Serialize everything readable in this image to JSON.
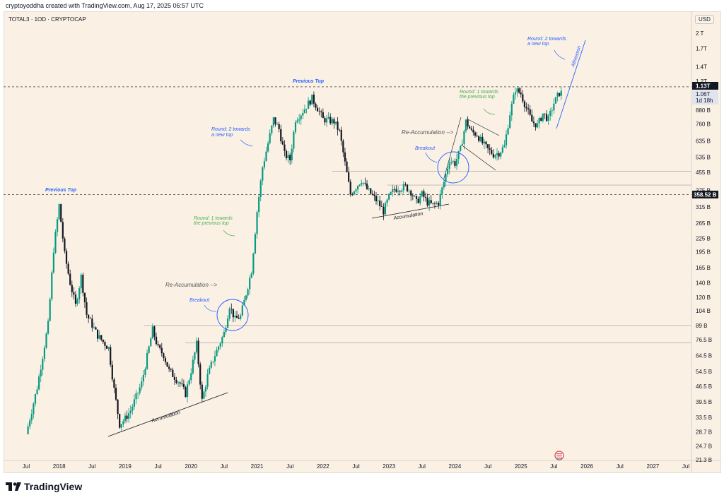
{
  "credit": "cryptoyoddha created with TradingView.com, Aug 17, 2025 06:57 UTC",
  "symbol": "TOTAL3 · 1OD · CRYPTOCAP",
  "currency": "USD",
  "brand": "TradingView",
  "icon": "tradingview-logo-icon",
  "colors": {
    "background": "#faf0e4",
    "up": "#089981",
    "down": "#131722",
    "annotation_blue": "#2962ff",
    "annotation_green": "#4caf50"
  },
  "chart_data": {
    "type": "candlestick",
    "title": "TOTAL3 · 1OD · CRYPTOCAP",
    "y_scale": "log",
    "y_unit": "USD",
    "y_ticks": [
      "2 T",
      "1.7T",
      "1.4T",
      "1.2T",
      "880 B",
      "760 B",
      "635 B",
      "535 B",
      "455 B",
      "375 B",
      "315 B",
      "265 B",
      "225 B",
      "195 B",
      "165 B",
      "140 B",
      "120 B",
      "104 B",
      "89 B",
      "76.5 B",
      "64.5 B",
      "54.5 B",
      "46.5 B",
      "39.5 B",
      "33.5 B",
      "28.7 B",
      "24.7 B",
      "21.3 B"
    ],
    "x_ticks": [
      "Jul",
      "2018",
      "Jul",
      "2019",
      "Jul",
      "2020",
      "Jul",
      "2021",
      "Jul",
      "2022",
      "Jul",
      "2023",
      "Jul",
      "2024",
      "Jul",
      "2025",
      "Jul",
      "2026",
      "Jul",
      "2027",
      "Jul"
    ],
    "price_labels": [
      "1.13T",
      "1.06T",
      "1d 18h",
      "358.52 B"
    ],
    "series": [
      {
        "date": "2017-07",
        "close": 28
      },
      {
        "date": "2017-09",
        "close": 46
      },
      {
        "date": "2017-11",
        "close": 90
      },
      {
        "date": "2017-12",
        "close": 200
      },
      {
        "date": "2018-01",
        "close": 320
      },
      {
        "date": "2018-02",
        "close": 190
      },
      {
        "date": "2018-03",
        "close": 140
      },
      {
        "date": "2018-04",
        "close": 110
      },
      {
        "date": "2018-05",
        "close": 150
      },
      {
        "date": "2018-06",
        "close": 100
      },
      {
        "date": "2018-08",
        "close": 80
      },
      {
        "date": "2018-10",
        "close": 70
      },
      {
        "date": "2018-11",
        "close": 45
      },
      {
        "date": "2018-12",
        "close": 31
      },
      {
        "date": "2019-01",
        "close": 33
      },
      {
        "date": "2019-02",
        "close": 36
      },
      {
        "date": "2019-04",
        "close": 48
      },
      {
        "date": "2019-06",
        "close": 85
      },
      {
        "date": "2019-07",
        "close": 70
      },
      {
        "date": "2019-08",
        "close": 65
      },
      {
        "date": "2019-09",
        "close": 55
      },
      {
        "date": "2019-11",
        "close": 48
      },
      {
        "date": "2019-12",
        "close": 43
      },
      {
        "date": "2020-01",
        "close": 55
      },
      {
        "date": "2020-02",
        "close": 73
      },
      {
        "date": "2020-03",
        "close": 40
      },
      {
        "date": "2020-04",
        "close": 52
      },
      {
        "date": "2020-05",
        "close": 62
      },
      {
        "date": "2020-07",
        "close": 82
      },
      {
        "date": "2020-08",
        "close": 110
      },
      {
        "date": "2020-09",
        "close": 95
      },
      {
        "date": "2020-10",
        "close": 98
      },
      {
        "date": "2020-11",
        "close": 125
      },
      {
        "date": "2020-12",
        "close": 160
      },
      {
        "date": "2021-01",
        "close": 300
      },
      {
        "date": "2021-02",
        "close": 480
      },
      {
        "date": "2021-04",
        "close": 800
      },
      {
        "date": "2021-05",
        "close": 720
      },
      {
        "date": "2021-06",
        "close": 550
      },
      {
        "date": "2021-07",
        "close": 520
      },
      {
        "date": "2021-08",
        "close": 800
      },
      {
        "date": "2021-09",
        "close": 850
      },
      {
        "date": "2021-11",
        "close": 1000
      },
      {
        "date": "2021-12",
        "close": 900
      },
      {
        "date": "2022-01",
        "close": 800
      },
      {
        "date": "2022-03",
        "close": 780
      },
      {
        "date": "2022-04",
        "close": 700
      },
      {
        "date": "2022-05",
        "close": 500
      },
      {
        "date": "2022-06",
        "close": 360
      },
      {
        "date": "2022-08",
        "close": 420
      },
      {
        "date": "2022-09",
        "close": 380
      },
      {
        "date": "2022-11",
        "close": 330
      },
      {
        "date": "2022-12",
        "close": 300
      },
      {
        "date": "2023-01",
        "close": 350
      },
      {
        "date": "2023-02",
        "close": 380
      },
      {
        "date": "2023-04",
        "close": 390
      },
      {
        "date": "2023-05",
        "close": 370
      },
      {
        "date": "2023-06",
        "close": 330
      },
      {
        "date": "2023-07",
        "close": 360
      },
      {
        "date": "2023-08",
        "close": 330
      },
      {
        "date": "2023-09",
        "close": 320
      },
      {
        "date": "2023-10",
        "close": 330
      },
      {
        "date": "2023-11",
        "close": 410
      },
      {
        "date": "2023-12",
        "close": 520
      },
      {
        "date": "2024-01",
        "close": 500
      },
      {
        "date": "2024-02",
        "close": 580
      },
      {
        "date": "2024-03",
        "close": 780
      },
      {
        "date": "2024-04",
        "close": 700
      },
      {
        "date": "2024-05",
        "close": 680
      },
      {
        "date": "2024-06",
        "close": 620
      },
      {
        "date": "2024-07",
        "close": 580
      },
      {
        "date": "2024-08",
        "close": 550
      },
      {
        "date": "2024-09",
        "close": 560
      },
      {
        "date": "2024-10",
        "close": 600
      },
      {
        "date": "2024-11",
        "close": 850
      },
      {
        "date": "2024-12",
        "close": 1100
      },
      {
        "date": "2025-01",
        "close": 1050
      },
      {
        "date": "2025-02",
        "close": 900
      },
      {
        "date": "2025-03",
        "close": 780
      },
      {
        "date": "2025-04",
        "close": 750
      },
      {
        "date": "2025-05",
        "close": 850
      },
      {
        "date": "2025-06",
        "close": 800
      },
      {
        "date": "2025-07",
        "close": 950
      },
      {
        "date": "2025-08",
        "close": 1060
      }
    ],
    "annotations": {
      "previous_top_left": "Previous Top",
      "previous_top_mid": "Previous Top",
      "round2_2020": [
        "Round: 2 towards",
        "a new top"
      ],
      "round1_2020": [
        "Round: 1 towards",
        "the previous top"
      ],
      "reaccum_2020": "Re-Accumulation -->",
      "breakout_2020": "Breakout",
      "accum_2019": "Accumulation",
      "reaccum_2023": "Re-Accumulation -->",
      "breakout_2023": "Breakout",
      "accum_2022": "Accumulation",
      "round1_2024": [
        "Round: 1 towards",
        "the previous top"
      ],
      "round2_2025": [
        "Round: 2 towards",
        "a new top"
      ],
      "altseason": "Altseason"
    }
  }
}
